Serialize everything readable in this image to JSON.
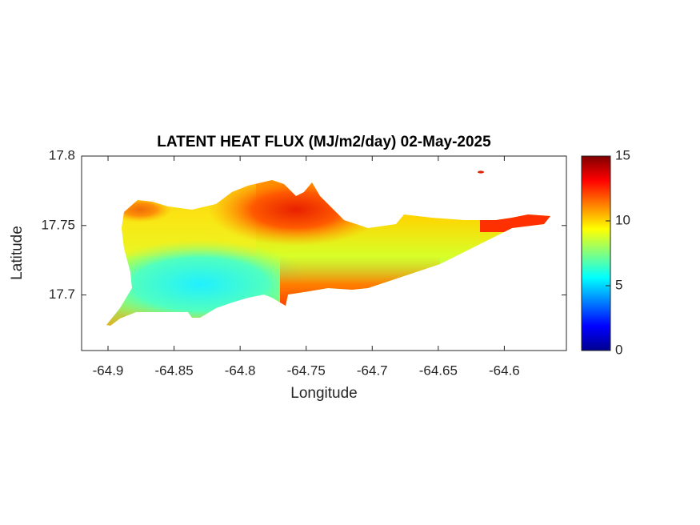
{
  "chart_data": {
    "type": "map",
    "title": "LATENT HEAT FLUX (MJ/m2/day) 02-May-2025",
    "x_label": "Longitude",
    "y_label": "Latitude",
    "xlim": [
      -64.92,
      -64.553
    ],
    "ylim": [
      17.66,
      17.8
    ],
    "xticks": [
      -64.9,
      -64.85,
      -64.8,
      -64.75,
      -64.7,
      -64.65,
      -64.6
    ],
    "yticks": [
      17.7,
      17.75,
      17.8
    ],
    "colorbar": {
      "colormap": "jet",
      "lim": [
        0,
        15
      ],
      "ticks": [
        0,
        5,
        10,
        15
      ]
    }
  }
}
